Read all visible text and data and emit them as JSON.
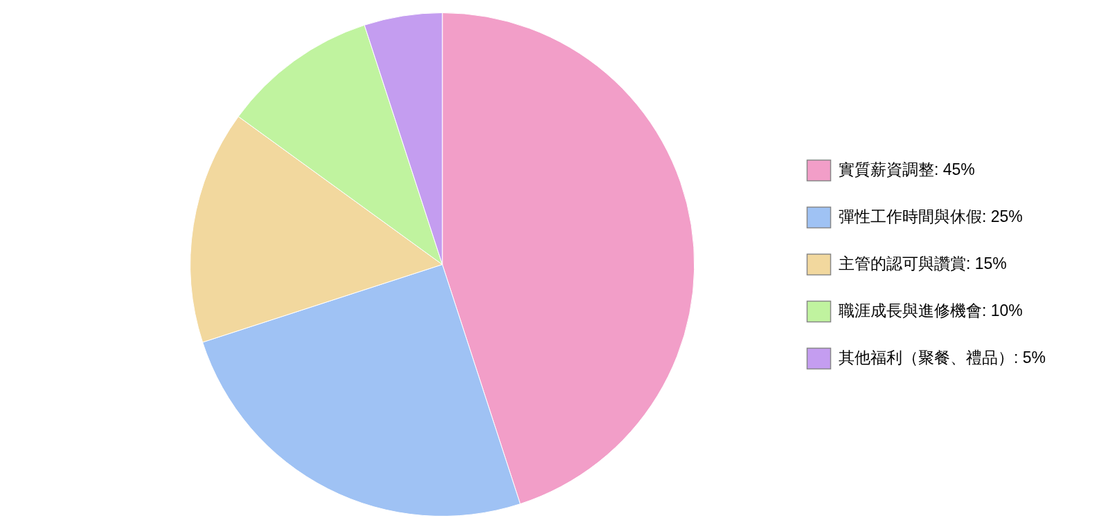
{
  "chart_data": {
    "type": "pie",
    "categories": [
      "實質薪資調整: 45%",
      "彈性工作時間與休假: 25%",
      "主管的認可與讚賞: 15%",
      "職涯成長與進修機會: 10%",
      "其他福利（聚餐、禮品）: 5%"
    ],
    "values": [
      45,
      25,
      15,
      10,
      5
    ],
    "colors": [
      "#f29ec8",
      "#9fc2f4",
      "#f2d89e",
      "#c0f39f",
      "#c49df0"
    ],
    "legend": "right"
  }
}
